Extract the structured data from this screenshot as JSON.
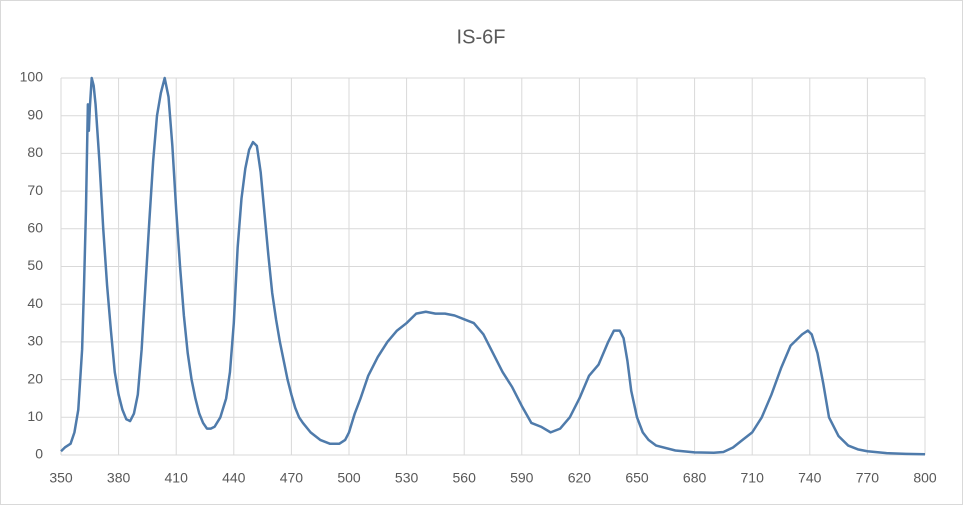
{
  "chart_data": {
    "type": "line",
    "title": "IS-6F",
    "x": [
      350,
      352,
      355,
      357,
      359,
      361,
      362,
      363,
      364,
      364.5,
      365,
      366,
      367,
      368,
      370,
      372,
      374,
      376,
      378,
      380,
      382,
      384,
      386,
      388,
      390,
      392,
      394,
      396,
      398,
      400,
      402,
      404,
      406,
      408,
      410,
      412,
      414,
      416,
      418,
      420,
      422,
      424,
      426,
      428,
      430,
      433,
      436,
      438,
      440,
      442,
      444,
      446,
      448,
      450,
      452,
      454,
      456,
      458,
      460,
      462,
      464,
      466,
      468,
      470,
      472,
      474,
      476,
      480,
      485,
      490,
      495,
      498,
      500,
      503,
      506,
      510,
      515,
      520,
      525,
      530,
      535,
      540,
      545,
      550,
      555,
      560,
      565,
      570,
      575,
      580,
      585,
      590,
      595,
      600,
      605,
      610,
      615,
      620,
      625,
      630,
      635,
      638,
      641,
      643,
      645,
      647,
      650,
      653,
      656,
      660,
      670,
      680,
      690,
      695,
      700,
      705,
      710,
      715,
      720,
      725,
      730,
      736,
      739,
      741,
      744,
      747,
      750,
      755,
      760,
      765,
      770,
      780,
      790,
      800
    ],
    "series": [
      {
        "name": "IS-6F",
        "color": "#4f7bab",
        "values": [
          1,
          2,
          3,
          6,
          12,
          28,
          45,
          65,
          93,
          86,
          92,
          100,
          98,
          93,
          78,
          60,
          45,
          33,
          22,
          16,
          12,
          9.5,
          9,
          11,
          16,
          28,
          45,
          62,
          78,
          90,
          96,
          100,
          95,
          82,
          65,
          50,
          37,
          27,
          20,
          15,
          11,
          8.5,
          7,
          7,
          7.5,
          10,
          15,
          22,
          35,
          55,
          68,
          76,
          81,
          83,
          82,
          75,
          64,
          53,
          43,
          36,
          30,
          25,
          20,
          16,
          12.5,
          10,
          8.5,
          6,
          4,
          3,
          3,
          4,
          6,
          11,
          15,
          21,
          26,
          30,
          33,
          35,
          37.5,
          38,
          37.5,
          37.5,
          37,
          36,
          35,
          32,
          27,
          22,
          18,
          13,
          8.5,
          7.5,
          6,
          7,
          10,
          15,
          21,
          24,
          30,
          33,
          33,
          31,
          25,
          17,
          10,
          6,
          4,
          2.5,
          1.2,
          0.7,
          0.6,
          0.8,
          2,
          4,
          6,
          10,
          16,
          23,
          29,
          32,
          33,
          32,
          27,
          19,
          10,
          5,
          2.5,
          1.5,
          1,
          0.5,
          0.3,
          0.2
        ]
      }
    ],
    "xlim": [
      350,
      800
    ],
    "xticks": [
      350,
      380,
      410,
      440,
      470,
      500,
      530,
      560,
      590,
      620,
      650,
      680,
      710,
      740,
      770,
      800
    ],
    "ylim": [
      0,
      100
    ],
    "yticks": [
      0,
      10,
      20,
      30,
      40,
      50,
      60,
      70,
      80,
      90,
      100
    ],
    "grid": true
  }
}
